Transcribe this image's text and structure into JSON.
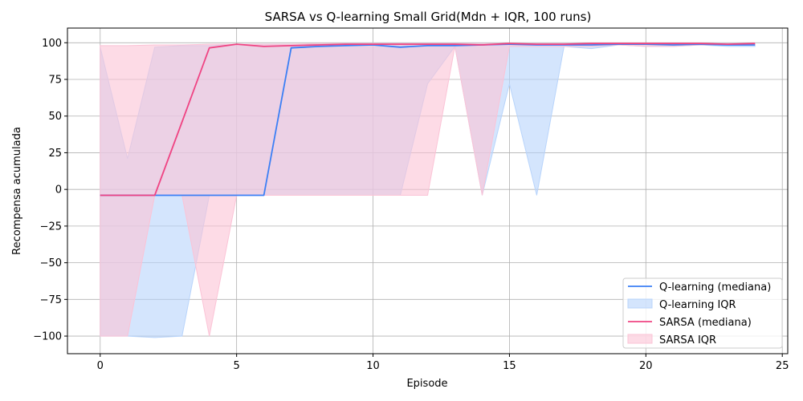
{
  "chart_data": {
    "type": "line",
    "title": "SARSA vs Q-learning Small Grid(Mdn + IQR, 100 runs)",
    "xlabel": "Episode",
    "ylabel": "Recompensa acumulada",
    "xlim": [
      -1.2,
      25.2
    ],
    "ylim": [
      -112,
      110
    ],
    "xticks": [
      0,
      5,
      10,
      15,
      20,
      25
    ],
    "yticks": [
      -100,
      -75,
      -50,
      -25,
      0,
      25,
      50,
      75,
      100
    ],
    "grid": true,
    "legend_position": "lower-right",
    "x": [
      0,
      1,
      2,
      3,
      4,
      5,
      6,
      7,
      8,
      9,
      10,
      11,
      12,
      13,
      14,
      15,
      16,
      17,
      18,
      19,
      20,
      21,
      22,
      23,
      24
    ],
    "series": [
      {
        "name": "Q-learning (mediana)",
        "color": "#3b7ff5",
        "values": [
          -4,
          -4,
          -4,
          -4,
          -4,
          -4,
          -4,
          96.5,
          97.5,
          98,
          98.5,
          97,
          98,
          98,
          98.5,
          99,
          98.5,
          98.5,
          98.5,
          99,
          99,
          98.5,
          99,
          98.5,
          98.5
        ]
      },
      {
        "name": "SARSA (mediana)",
        "color": "#ef4483",
        "values": [
          -4,
          -4,
          -4,
          46,
          96.5,
          99,
          97.5,
          98,
          98.5,
          99,
          99,
          99,
          99,
          99,
          98.5,
          99.5,
          99,
          99,
          99.5,
          99.5,
          99.5,
          99.5,
          99.5,
          99,
          99.5
        ]
      }
    ],
    "bands": [
      {
        "name": "Q-learning IQR",
        "color": "#b8d4fb",
        "lower": [
          -100,
          -100,
          -101,
          -100,
          -4,
          -4,
          -4,
          -4,
          -4,
          -4,
          -4,
          -4,
          72,
          97.5,
          -4,
          72,
          -4,
          97.5,
          96,
          98.5,
          97.5,
          97.5,
          98.5,
          97.5,
          97.5
        ],
        "upper": [
          97,
          21,
          97,
          98,
          98,
          99,
          99,
          99,
          99,
          99.5,
          99.5,
          99.5,
          99.5,
          99.5,
          99.5,
          99.5,
          99.5,
          99.5,
          99.5,
          99.5,
          99.5,
          99.5,
          99.5,
          99.5,
          99.5
        ]
      },
      {
        "name": "SARSA IQR",
        "color": "#fbc3d6",
        "lower": [
          -100,
          -100,
          -4,
          -4,
          -100,
          -4,
          -4,
          -4,
          -4,
          -4,
          -4,
          -4,
          -4,
          97.5,
          -4,
          97.5,
          97.5,
          97.5,
          97.5,
          98.5,
          97.5,
          97.5,
          98.5,
          98.5,
          98.5
        ],
        "upper": [
          98,
          98,
          98.5,
          98.5,
          99,
          99,
          99,
          99,
          99.5,
          99.5,
          99.5,
          99.5,
          99.5,
          99.5,
          99.5,
          99.5,
          99.5,
          99.5,
          99.5,
          99.5,
          99.5,
          99.5,
          99.5,
          99.5,
          99.5
        ]
      }
    ]
  }
}
